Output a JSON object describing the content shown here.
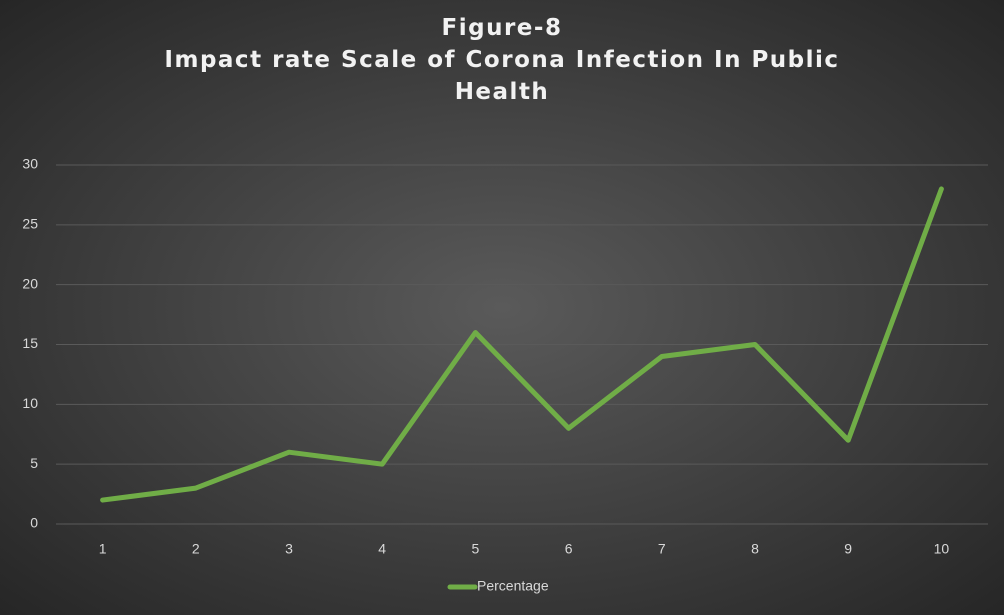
{
  "chart_data": {
    "type": "line",
    "title": "Figure-8",
    "subtitle": "Impact rate Scale of Corona Infection In Public Health",
    "categories": [
      1,
      2,
      3,
      4,
      5,
      6,
      7,
      8,
      9,
      10
    ],
    "series": [
      {
        "name": "Percentage",
        "color": "#70ad47",
        "values": [
          2,
          3,
          6,
          5,
          16,
          8,
          14,
          15,
          7,
          28
        ]
      }
    ],
    "ylim": [
      0,
      30
    ],
    "yticks": [
      0,
      5,
      10,
      15,
      20,
      25,
      30
    ],
    "grid": true,
    "legend": "bottom"
  }
}
